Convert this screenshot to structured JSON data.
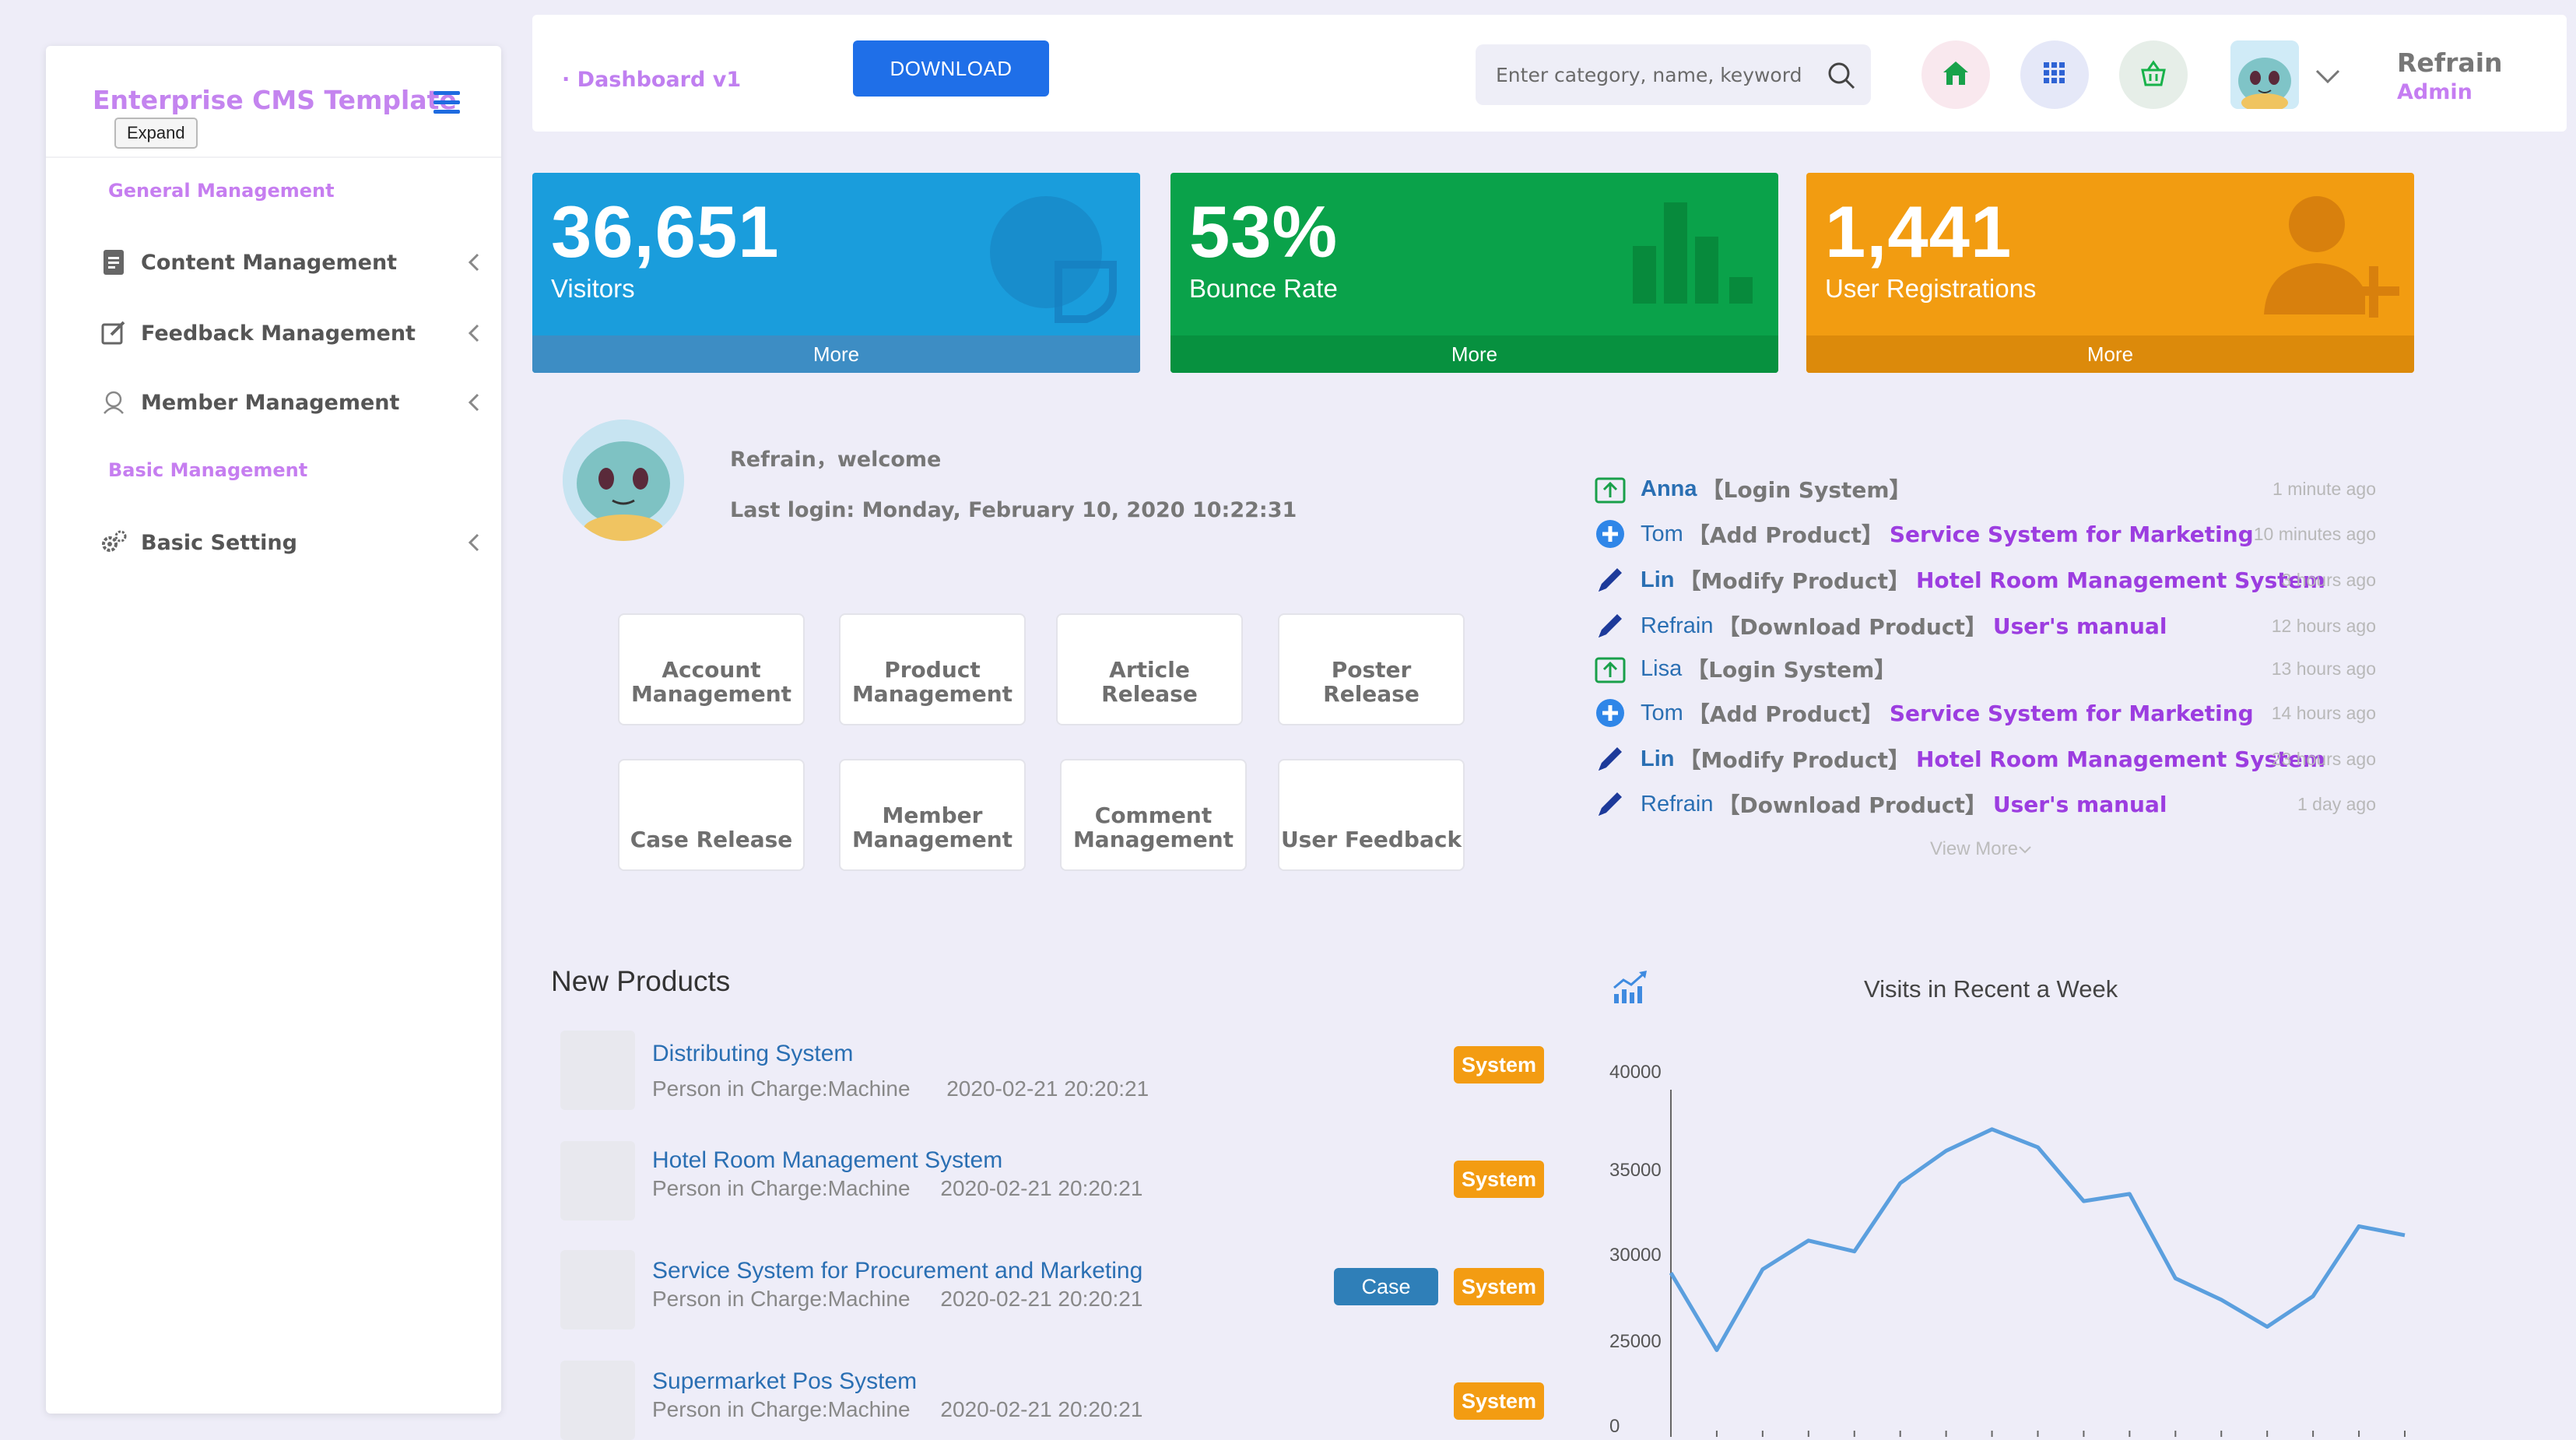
{
  "sidebar": {
    "brand": "Enterprise CMS Template",
    "tooltip": "Expand",
    "groups": [
      "General Management",
      "Basic Management"
    ],
    "items": [
      {
        "label": "Content Management"
      },
      {
        "label": "Feedback Management"
      },
      {
        "label": "Member Management"
      },
      {
        "label": "Basic Setting"
      }
    ]
  },
  "topbar": {
    "breadcrumb": "· Dashboard v1",
    "download_label": "DOWNLOAD",
    "search_placeholder": "Enter category, name, keyword",
    "user_name": "Refrain",
    "user_role": "Admin"
  },
  "stats": [
    {
      "value": "36,651",
      "label": "Visitors",
      "more": "More",
      "color": "#1a9ddc"
    },
    {
      "value": "53%",
      "label": "Bounce Rate",
      "more": "More",
      "color": "#0aa24a"
    },
    {
      "value": "1,441",
      "label": "User Registrations",
      "more": "More",
      "color": "#f29c11"
    }
  ],
  "welcome": {
    "greeting": "Refrain，welcome",
    "last_login": "Last login: Monday, February 10, 2020 10:22:31"
  },
  "quick_actions": [
    {
      "label": "Account\nManagement"
    },
    {
      "label": "Product\nManagement"
    },
    {
      "label": "Article Release"
    },
    {
      "label": "Poster Release"
    },
    {
      "label": "Case Release"
    },
    {
      "label": "Member\nManagement"
    },
    {
      "label": "Comment\nManagement"
    },
    {
      "label": "User Feedback"
    }
  ],
  "activity": [
    {
      "icon": "login-icon",
      "who": "Anna",
      "action": "【Login System】",
      "target": "",
      "time": "1 minute ago"
    },
    {
      "icon": "add-icon",
      "who": "Tom",
      "action": "【Add Product】",
      "target": "Service System for Marketing",
      "time": "10 minutes ago"
    },
    {
      "icon": "edit-icon",
      "who": "Lin",
      "action": "【Modify Product】",
      "target": "Hotel Room Management System",
      "time": "3 hours ago"
    },
    {
      "icon": "edit-icon",
      "who": "Refrain",
      "action": "【Download Product】",
      "target": "User's manual",
      "time": "12 hours ago"
    },
    {
      "icon": "login-icon",
      "who": "Lisa",
      "action": "【Login System】",
      "target": "",
      "time": "13 hours ago"
    },
    {
      "icon": "add-icon",
      "who": "Tom",
      "action": "【Add Product】",
      "target": "Service System for Marketing",
      "time": "14 hours ago"
    },
    {
      "icon": "edit-icon",
      "who": "Lin",
      "action": "【Modify Product】",
      "target": "Hotel Room Management System",
      "time": "23 hours ago"
    },
    {
      "icon": "edit-icon",
      "who": "Refrain",
      "action": "【Download Product】",
      "target": "User's manual",
      "time": "1 day ago"
    }
  ],
  "view_more": "View More",
  "new_products": {
    "title": "New Products",
    "items": [
      {
        "name": "Distributing System",
        "person": "Person in Charge:Machine",
        "date": "2020-02-21 20:20:21",
        "tags": [
          "System"
        ]
      },
      {
        "name": "Hotel Room Management System",
        "person": "Person in Charge:Machine",
        "date": "2020-02-21 20:20:21",
        "tags": [
          "System"
        ]
      },
      {
        "name": "Service System for Procurement and Marketing",
        "person": "Person in Charge:Machine",
        "date": "2020-02-21 20:20:21",
        "tags": [
          "Case",
          "System"
        ]
      },
      {
        "name": "Supermarket Pos System",
        "person": "Person in Charge:Machine",
        "date": "2020-02-21 20:20:21",
        "tags": [
          "System"
        ]
      }
    ]
  },
  "chart_data": {
    "type": "line",
    "title": "Visits in Recent a Week",
    "y_ticks": [
      "40000",
      "35000",
      "30000",
      "25000",
      "0"
    ],
    "ylim": [
      0,
      40000
    ],
    "series": [
      {
        "values": [
          28800,
          24500,
          29000,
          30600,
          30000,
          33800,
          35600,
          36800,
          35800,
          32800,
          33200,
          28500,
          27300,
          25800,
          27500,
          31400,
          30900
        ]
      }
    ],
    "grid": false,
    "color": "#5b9fde"
  }
}
